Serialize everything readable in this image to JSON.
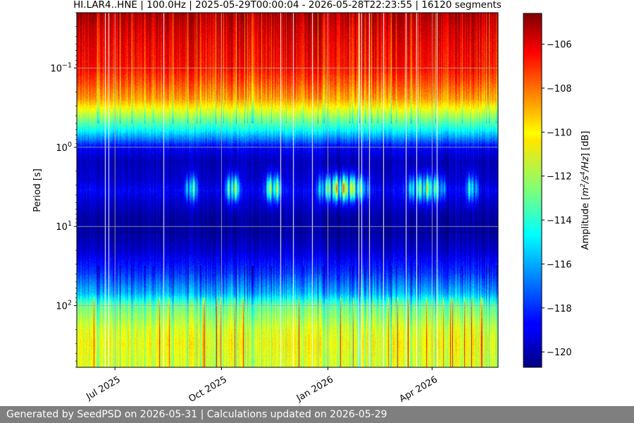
{
  "chart_data": {
    "type": "heatmap",
    "title": "HI.LAR4..HNE | 100.0Hz | 2025-05-29T00:00:04 - 2026-05-28T22:23:55 | 16120 segments",
    "xlabel": "",
    "ylabel": "Period [s]",
    "yscale": "log",
    "y_inverted": true,
    "ylim": [
      0.02,
      600
    ],
    "xlim": [
      "2025-05-29",
      "2026-05-28"
    ],
    "x_ticks": [
      {
        "date": "2025-07-01",
        "label": "Jul 2025"
      },
      {
        "date": "2025-10-01",
        "label": "Oct 2025"
      },
      {
        "date": "2026-01-01",
        "label": "Jan 2026"
      },
      {
        "date": "2026-04-01",
        "label": "Apr 2026"
      }
    ],
    "y_ticks": [
      {
        "value": 0.1,
        "base": "10",
        "exp": "−1"
      },
      {
        "value": 1,
        "base": "10",
        "exp": "0"
      },
      {
        "value": 10,
        "base": "10",
        "exp": "1"
      },
      {
        "value": 100,
        "base": "10",
        "exp": "2"
      }
    ],
    "grid": true,
    "colormap": "jet",
    "colorbar": {
      "label_parts": [
        "Amplitude [",
        "m",
        "2",
        "/",
        "s",
        "4",
        "/",
        "Hz",
        "] [dB]"
      ],
      "vmin": -120.7,
      "vmax": -104.6,
      "ticks": [
        -106,
        -108,
        -110,
        -112,
        -114,
        -116,
        -118,
        -120
      ],
      "tick_labels": [
        "−106",
        "−108",
        "−110",
        "−112",
        "−114",
        "−116",
        "−118",
        "−120"
      ]
    },
    "amplitude_profile": [
      {
        "period": 0.02,
        "db": -105.2
      },
      {
        "period": 0.03,
        "db": -105.8
      },
      {
        "period": 0.05,
        "db": -106.3
      },
      {
        "period": 0.1,
        "db": -106.8
      },
      {
        "period": 0.15,
        "db": -107.8
      },
      {
        "period": 0.25,
        "db": -109.2
      },
      {
        "period": 0.4,
        "db": -112.0
      },
      {
        "period": 0.6,
        "db": -114.5
      },
      {
        "period": 0.8,
        "db": -116.8
      },
      {
        "period": 1.0,
        "db": -118.8
      },
      {
        "period": 1.5,
        "db": -119.8
      },
      {
        "period": 2.5,
        "db": -119.5
      },
      {
        "period": 3.5,
        "db": -118.8
      },
      {
        "period": 5,
        "db": -119.5
      },
      {
        "period": 8,
        "db": -120.2
      },
      {
        "period": 12,
        "db": -120.2
      },
      {
        "period": 20,
        "db": -119.5
      },
      {
        "period": 40,
        "db": -117.8
      },
      {
        "period": 70,
        "db": -115.8
      },
      {
        "period": 100,
        "db": -113.0
      },
      {
        "period": 200,
        "db": -111.2
      },
      {
        "period": 300,
        "db": -110.8
      },
      {
        "period": 600,
        "db": -111.3
      }
    ],
    "microseism_peak_period_s": 3.3,
    "microseism_events": [
      {
        "start": "2025-08-29",
        "end": "2025-09-12",
        "peak_db": -112.0
      },
      {
        "start": "2025-10-03",
        "end": "2025-10-19",
        "peak_db": -109.5
      },
      {
        "start": "2025-11-05",
        "end": "2025-11-24",
        "peak_db": -109.0
      },
      {
        "start": "2025-12-20",
        "end": "2026-02-08",
        "peak_db": -106.8
      },
      {
        "start": "2026-03-06",
        "end": "2026-04-16",
        "peak_db": -110.0
      },
      {
        "start": "2026-04-28",
        "end": "2026-05-12",
        "peak_db": -112.5
      }
    ]
  },
  "footer": {
    "text": "Generated by SeedPSD on 2026-05-31 | Calculations updated on 2026-05-29"
  }
}
